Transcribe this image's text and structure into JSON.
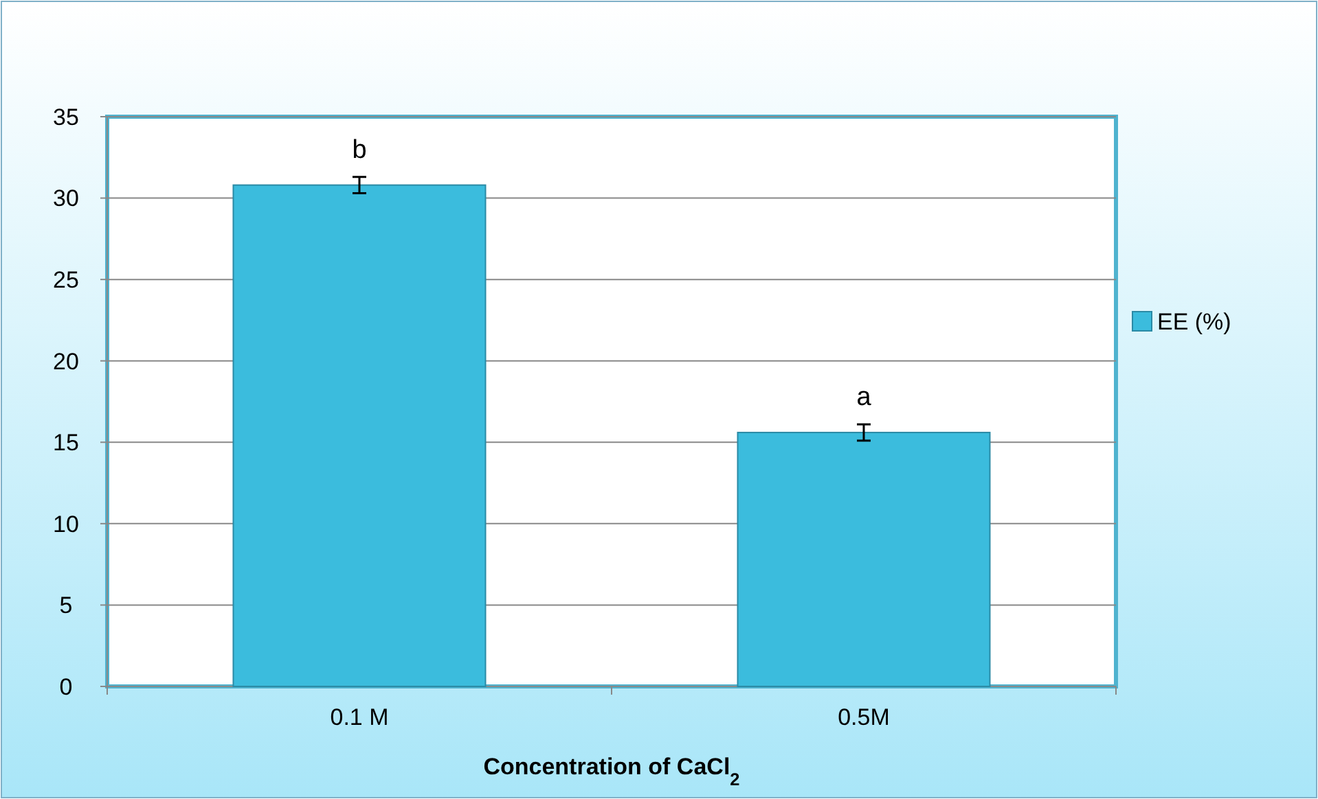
{
  "chart_data": {
    "type": "bar",
    "xlabel": "Concentration of CaCl$_{2}$",
    "categories": [
      "0.1 M",
      "0.5M"
    ],
    "series": [
      {
        "name": "EE (%)",
        "color": "#3bbcdd",
        "values": [
          30.8,
          15.6
        ],
        "errors": [
          0.5,
          0.5
        ]
      }
    ],
    "ylim": [
      0,
      35
    ],
    "yticks": [
      0,
      5,
      10,
      15,
      20,
      25,
      30,
      35
    ],
    "grid": "y",
    "legend": "right",
    "annotations": [
      {
        "text": "b",
        "x": "0.1 M",
        "y": 30.8
      },
      {
        "text": "a",
        "x": "0.5M",
        "y": 15.6
      }
    ]
  }
}
